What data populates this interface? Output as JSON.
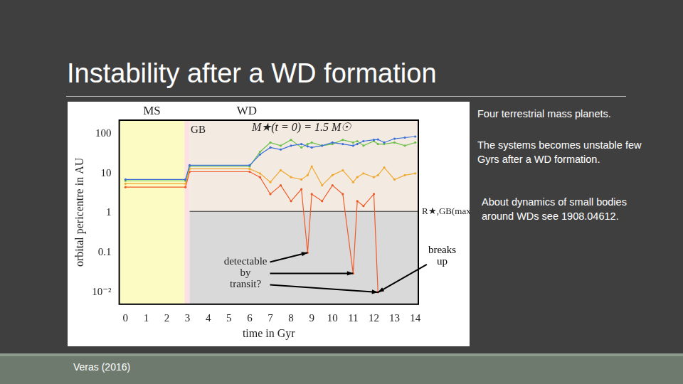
{
  "slide": {
    "title": "Instability after a WD formation",
    "notes": [
      "Four terrestrial mass planets.",
      "The systems becomes unstable few Gyrs after a WD formation.",
      "About dynamics of small bodies around WDs see 1908.04612."
    ],
    "credit": "Veras (2016)"
  },
  "chart_data": {
    "type": "scatter",
    "x_label": "time in Gyr",
    "y_label": "orbital pericentre in AU",
    "log": "y",
    "grid": false,
    "xlim": [
      -0.3,
      14.15
    ],
    "xticks": [
      0,
      1,
      2,
      3,
      4,
      5,
      6,
      7,
      8,
      9,
      10,
      11,
      12,
      13,
      14
    ],
    "ylim": [
      0.005,
      220
    ],
    "yticks": [
      {
        "value": 0.01,
        "label": "10⁻²"
      },
      0.1,
      1,
      10,
      100
    ],
    "x": [
      0,
      2.9,
      3.1,
      6,
      6.5,
      7,
      7.5,
      8,
      8.5,
      8.8,
      9,
      9.5,
      10,
      10.5,
      11,
      11.2,
      11.5,
      12,
      12.2,
      12.5,
      13,
      13.5,
      14
    ],
    "series": [
      {
        "color": "#3a6fd8",
        "marker": "circle",
        "line_style": "solid",
        "values": [
          7,
          7,
          16,
          16,
          30,
          45,
          40,
          50,
          55,
          48,
          45,
          50,
          60,
          55,
          50,
          55,
          65,
          70,
          72,
          60,
          75,
          80,
          85
        ]
      },
      {
        "color": "#6cc04a",
        "marker": "circle",
        "line_style": "solid",
        "values": [
          6.5,
          6.5,
          15,
          15,
          35,
          60,
          50,
          70,
          45,
          55,
          60,
          50,
          55,
          70,
          60,
          65,
          50,
          65,
          55,
          55,
          60,
          50,
          60
        ]
      },
      {
        "color": "#f0a830",
        "marker": "circle",
        "line_style": "solid",
        "values": [
          5.5,
          5.5,
          13,
          13,
          10,
          6,
          12,
          8,
          7,
          9,
          15,
          5,
          9,
          12,
          6,
          8,
          10,
          8,
          9,
          14,
          7,
          9,
          10
        ]
      },
      {
        "color": "#f05a28",
        "marker": "circle",
        "line_style": "solid",
        "values": [
          4.5,
          4.5,
          11,
          11,
          8,
          3,
          5,
          2,
          4,
          0.1,
          3,
          2,
          5,
          3,
          0.03,
          2,
          1.5,
          3,
          0.01,
          null,
          null,
          null,
          null
        ]
      }
    ],
    "regions": [
      {
        "label": "MS",
        "xlim": [
          -0.3,
          2.85
        ]
      },
      {
        "label": "GB",
        "xlim": [
          2.85,
          3.1
        ]
      },
      {
        "label": "WD",
        "xlim": [
          3.1,
          14.15
        ]
      }
    ],
    "threshold": {
      "value": 1.1,
      "label": "R★,GB(max)"
    },
    "annotations": [
      {
        "text": [
          "M★(t = 0) = 1.5 M☉"
        ],
        "x": 8.5,
        "y": 140
      },
      {
        "text": [
          "detectable",
          "by",
          "transit?"
        ],
        "x": 5.8,
        "y": 0.03,
        "arrows": [
          [
            8.8,
            0.1
          ],
          [
            11,
            0.03
          ],
          [
            12.2,
            0.01
          ]
        ]
      },
      {
        "text": [
          "breaks",
          "up"
        ],
        "x": 15.3,
        "y": 0.083,
        "arrows": [
          [
            12.2,
            0.01
          ]
        ]
      }
    ]
  }
}
